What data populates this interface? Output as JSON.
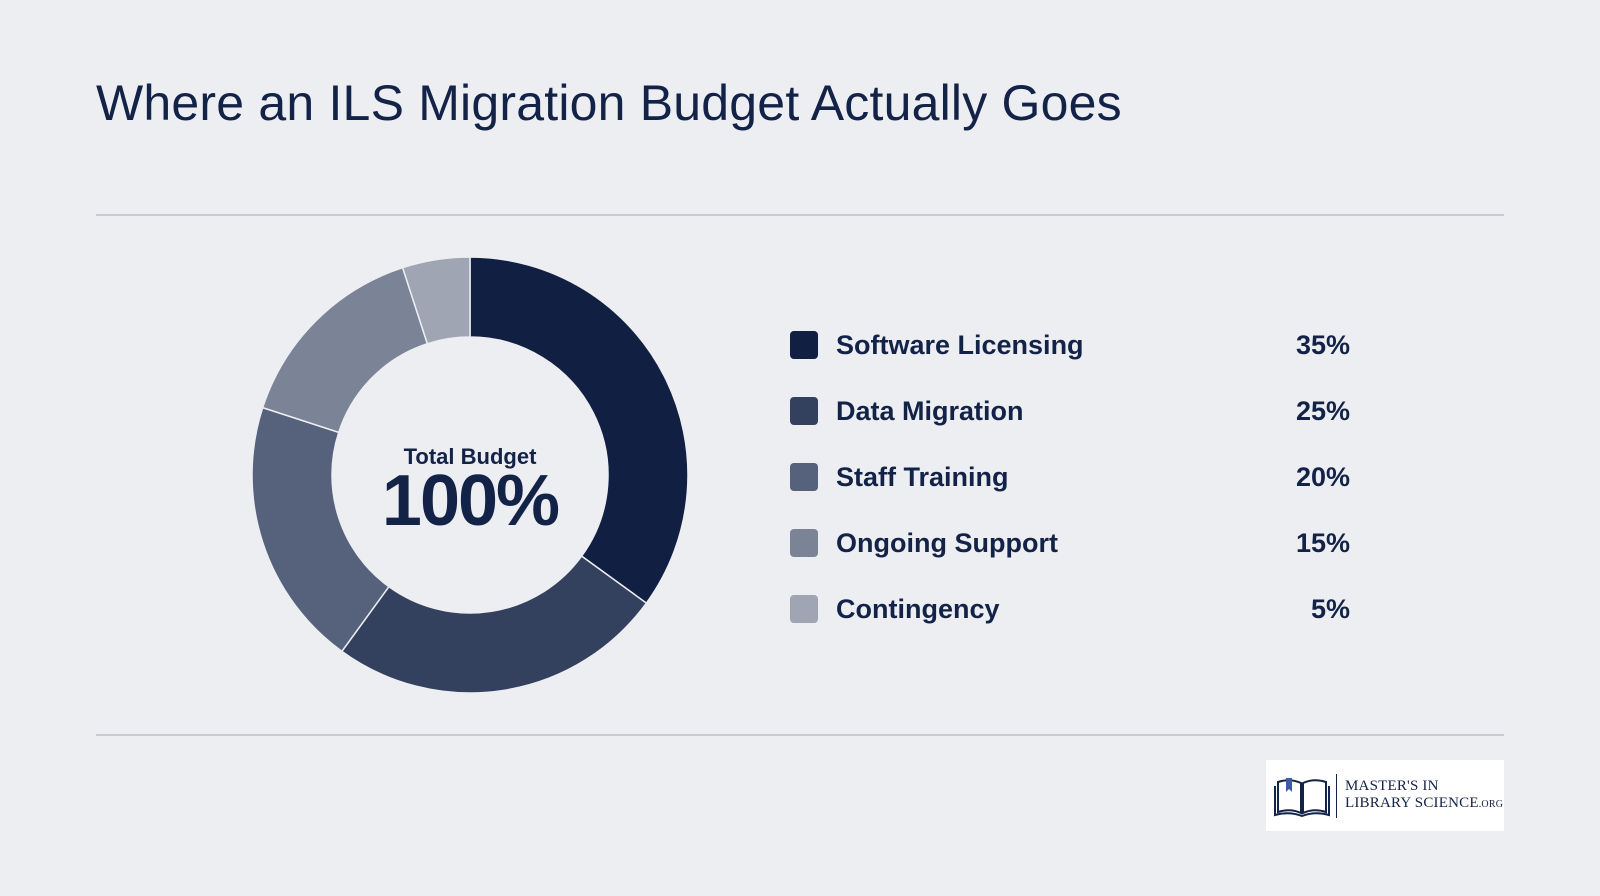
{
  "title": "Where an ILS Migration Budget Actually Goes",
  "center": {
    "label": "Total Budget",
    "value": "100%"
  },
  "chart_data": {
    "type": "pie",
    "donut": true,
    "categories": [
      "Software Licensing",
      "Data Migration",
      "Staff Training",
      "Ongoing Support",
      "Contingency"
    ],
    "values": [
      35,
      25,
      20,
      15,
      5
    ],
    "value_labels": [
      "35%",
      "25%",
      "20%",
      "15%",
      "5%"
    ],
    "colors": [
      "#111f42",
      "#33405e",
      "#56617b",
      "#7b8396",
      "#a0a5b3"
    ],
    "legend_position": "right"
  },
  "logo": {
    "line1": "MASTER'S IN",
    "line2": "LIBRARY SCIENCE",
    "suffix": ".ORG"
  }
}
